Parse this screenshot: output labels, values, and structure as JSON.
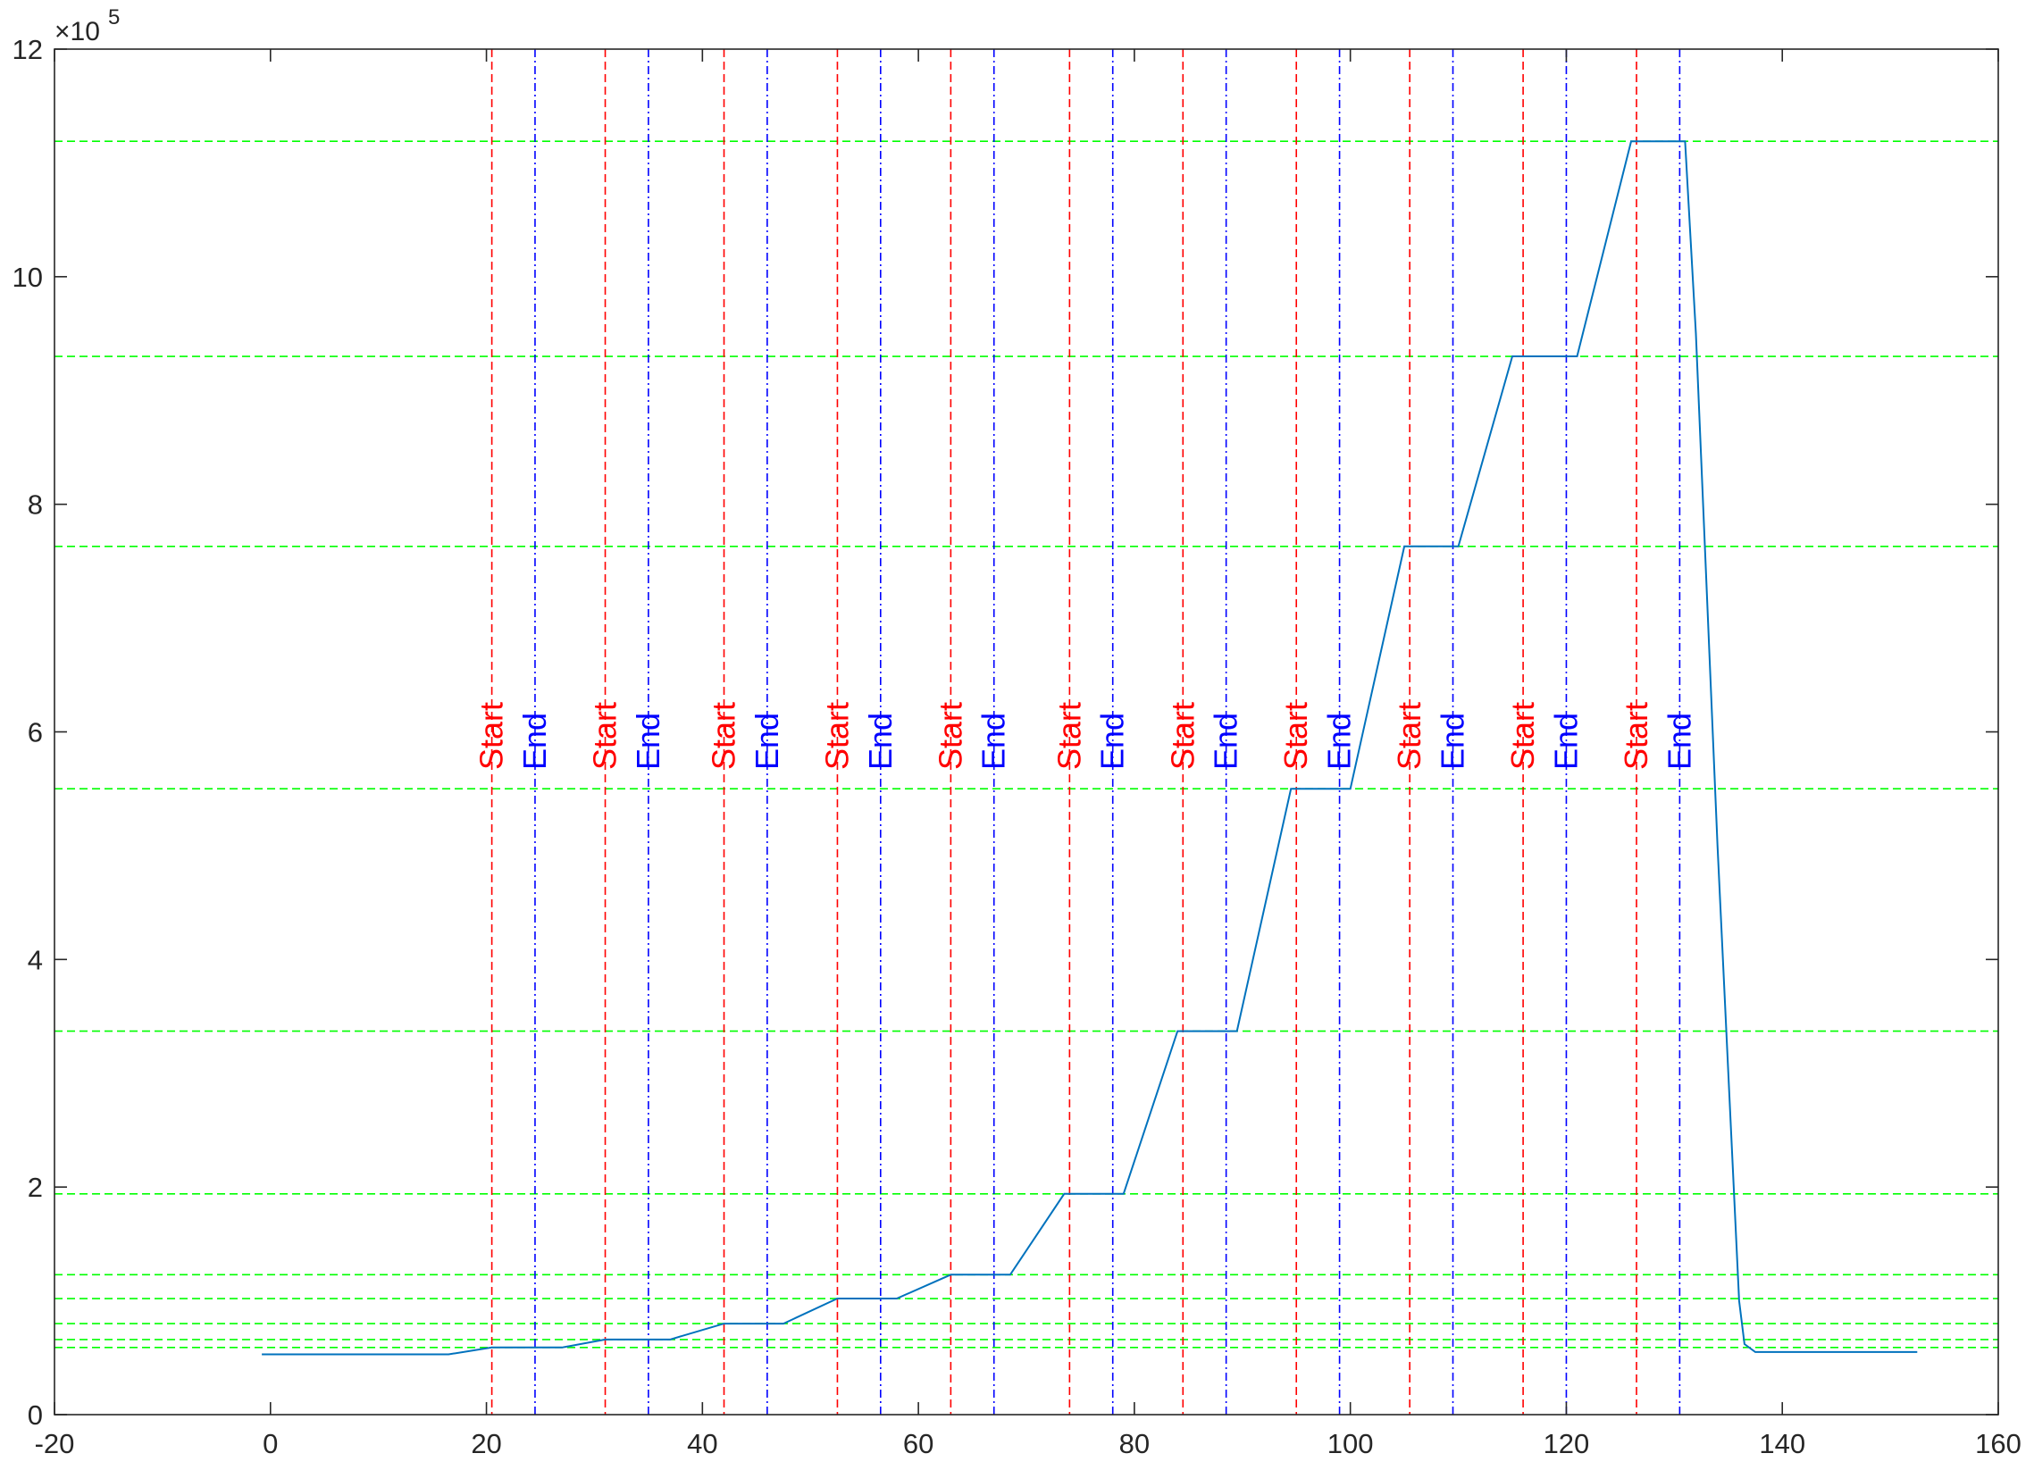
{
  "chart_data": {
    "type": "line",
    "title": "",
    "xlabel": "",
    "ylabel": "",
    "xlim": [
      -20,
      160
    ],
    "ylim": [
      0,
      1200000
    ],
    "xticks": [
      -20,
      0,
      20,
      40,
      60,
      80,
      100,
      120,
      140,
      160
    ],
    "yticks": [
      0,
      200000,
      400000,
      600000,
      800000,
      1000000,
      1200000
    ],
    "ytick_labels": [
      "0",
      "2",
      "4",
      "6",
      "8",
      "10",
      "12"
    ],
    "y_exponent": {
      "base": "×10",
      "power": "5"
    },
    "grid": false,
    "colors": {
      "series": "#0072BD",
      "start": "#FF0000",
      "end": "#0000FF",
      "level": "#00FF00",
      "axis": "#262626"
    },
    "series": [
      {
        "x": [
          -0.8,
          16.5,
          20.5,
          27,
          31,
          37,
          42,
          47.5,
          52.5,
          58,
          63,
          68.5,
          73.5,
          79,
          84,
          89.5,
          94.5,
          100,
          105,
          110,
          115,
          121,
          126,
          131,
          132,
          134,
          136,
          136.5,
          137.5,
          152.5
        ],
        "y": [
          53000,
          53000,
          59000,
          59000,
          66000,
          66000,
          80000,
          80000,
          102000,
          102000,
          123000,
          123000,
          194000,
          194000,
          337000,
          337000,
          550000,
          550000,
          763000,
          763000,
          930000,
          930000,
          1119000,
          1119000,
          950000,
          500000,
          100000,
          62000,
          55000,
          55000
        ]
      }
    ],
    "start_markers": {
      "label": "Start",
      "x": [
        20.5,
        31,
        42,
        52.5,
        63,
        74,
        84.5,
        95,
        105.5,
        116,
        126.5
      ]
    },
    "end_markers": {
      "label": "End",
      "x": [
        24.5,
        35,
        46,
        56.5,
        67,
        78,
        88.5,
        99,
        109.5,
        120,
        130.5
      ]
    },
    "level_lines": [
      59000,
      66000,
      80000,
      102000,
      123000,
      194000,
      337000,
      550000,
      763000,
      930000,
      1119000
    ]
  }
}
